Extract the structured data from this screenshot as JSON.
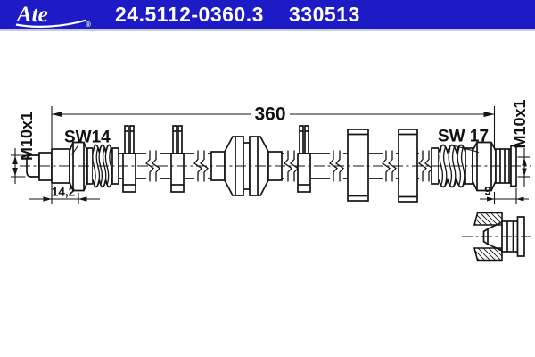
{
  "header": {
    "logo_text": "Ate",
    "registered_mark": "®",
    "part_number": "24.5112-0360.3",
    "catalog_number": "330513",
    "background_color": "#1d1bc6",
    "text_color": "#ffffff"
  },
  "drawing": {
    "line_color": "#141414",
    "overall_length_mm": "360",
    "left_end": {
      "thread": "M10x1",
      "wrench_size": "SW14",
      "thread_length_mm": "14,2"
    },
    "right_end": {
      "thread": "M10x1",
      "wrench_size": "SW 17",
      "fitting_length_mm": "9"
    }
  }
}
